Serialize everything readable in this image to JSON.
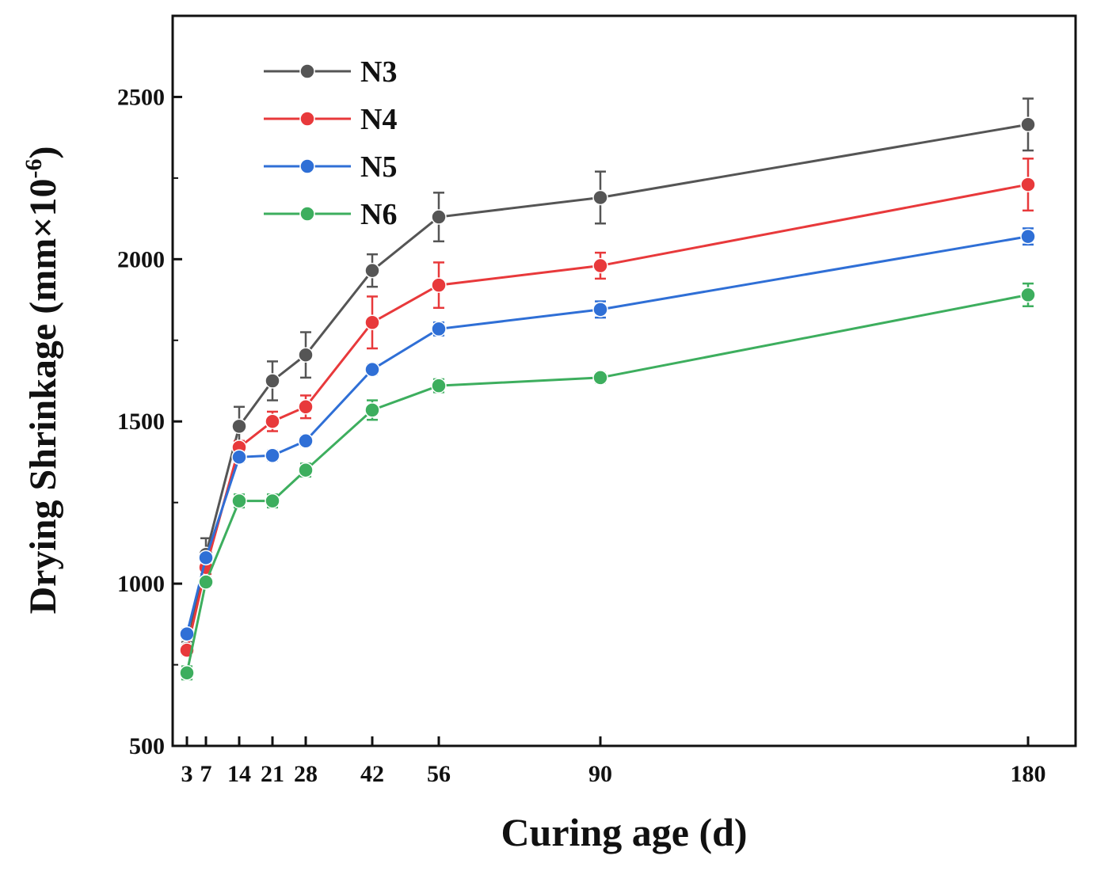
{
  "chart_data": {
    "type": "line",
    "xlabel": "Curing age (d)",
    "ylabel_prefix": "Drying Shrinkage (mm×10",
    "ylabel_sup": "-6",
    "ylabel_suffix": ")",
    "x": [
      3,
      7,
      14,
      21,
      28,
      42,
      56,
      90,
      180
    ],
    "x_tick_labels": [
      "3",
      "7",
      "14",
      "21",
      "28",
      "42",
      "56",
      "90",
      "180"
    ],
    "ylim": [
      500,
      2750
    ],
    "y_ticks": [
      500,
      1000,
      1500,
      2000,
      2500
    ],
    "legend_position": "top-left",
    "series": [
      {
        "name": "N3",
        "color": "#555555",
        "values": [
          800,
          1090,
          1485,
          1625,
          1705,
          1965,
          2130,
          2190,
          2415
        ],
        "errors": [
          20,
          50,
          60,
          60,
          70,
          50,
          75,
          80,
          80
        ]
      },
      {
        "name": "N4",
        "color": "#e8393b",
        "values": [
          795,
          1050,
          1420,
          1500,
          1545,
          1805,
          1920,
          1980,
          2230
        ],
        "errors": [
          15,
          20,
          20,
          30,
          35,
          80,
          70,
          40,
          80
        ]
      },
      {
        "name": "N5",
        "color": "#2f6fd6",
        "values": [
          845,
          1080,
          1390,
          1395,
          1440,
          1660,
          1785,
          1845,
          2070
        ],
        "errors": [
          15,
          15,
          15,
          15,
          15,
          15,
          20,
          25,
          25
        ]
      },
      {
        "name": "N6",
        "color": "#3dae5e",
        "values": [
          725,
          1005,
          1255,
          1255,
          1350,
          1535,
          1610,
          1635,
          1890
        ],
        "errors": [
          20,
          15,
          20,
          20,
          20,
          30,
          20,
          15,
          35
        ]
      }
    ]
  }
}
